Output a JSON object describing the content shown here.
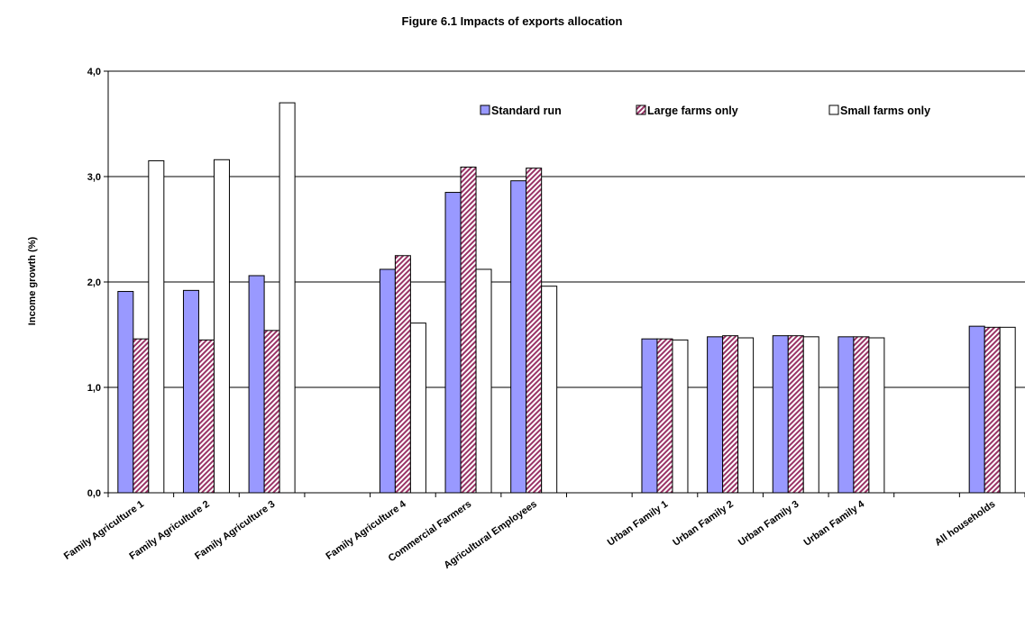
{
  "chart_data": {
    "type": "bar",
    "title": "Figure 6.1 Impacts of exports allocation",
    "xlabel": "",
    "ylabel": "Income growth (%)",
    "ylim": [
      0,
      4
    ],
    "yticks": [
      "0,0",
      "1,0",
      "2,0",
      "3,0",
      "4,0"
    ],
    "grid": true,
    "legend_position": "top-right",
    "categories": [
      "Family Agriculture 1",
      "Family Agriculture 2",
      "Family Agriculture 3",
      "",
      "Family Agriculture 4",
      "Commercial Farmers",
      "Agricultural Employees",
      "",
      "Urban Family 1",
      "Urban Family 2",
      "Urban Family 3",
      "Urban Family 4",
      "",
      "All households"
    ],
    "series": [
      {
        "name": "Standard run",
        "color": "#9999ff",
        "pattern": "solid",
        "values": [
          1.91,
          1.92,
          2.06,
          null,
          2.12,
          2.85,
          2.96,
          null,
          1.46,
          1.48,
          1.49,
          1.48,
          null,
          1.58
        ]
      },
      {
        "name": "Large farms only",
        "color": "#993366",
        "pattern": "diagonal-hatch",
        "values": [
          1.46,
          1.45,
          1.54,
          null,
          2.25,
          3.09,
          3.08,
          null,
          1.46,
          1.49,
          1.49,
          1.48,
          null,
          1.57
        ]
      },
      {
        "name": "Small farms only",
        "color": "#ffffff",
        "pattern": "solid",
        "values": [
          3.15,
          3.16,
          3.7,
          null,
          1.61,
          2.12,
          1.96,
          null,
          1.45,
          1.47,
          1.48,
          1.47,
          null,
          1.57
        ]
      }
    ]
  }
}
